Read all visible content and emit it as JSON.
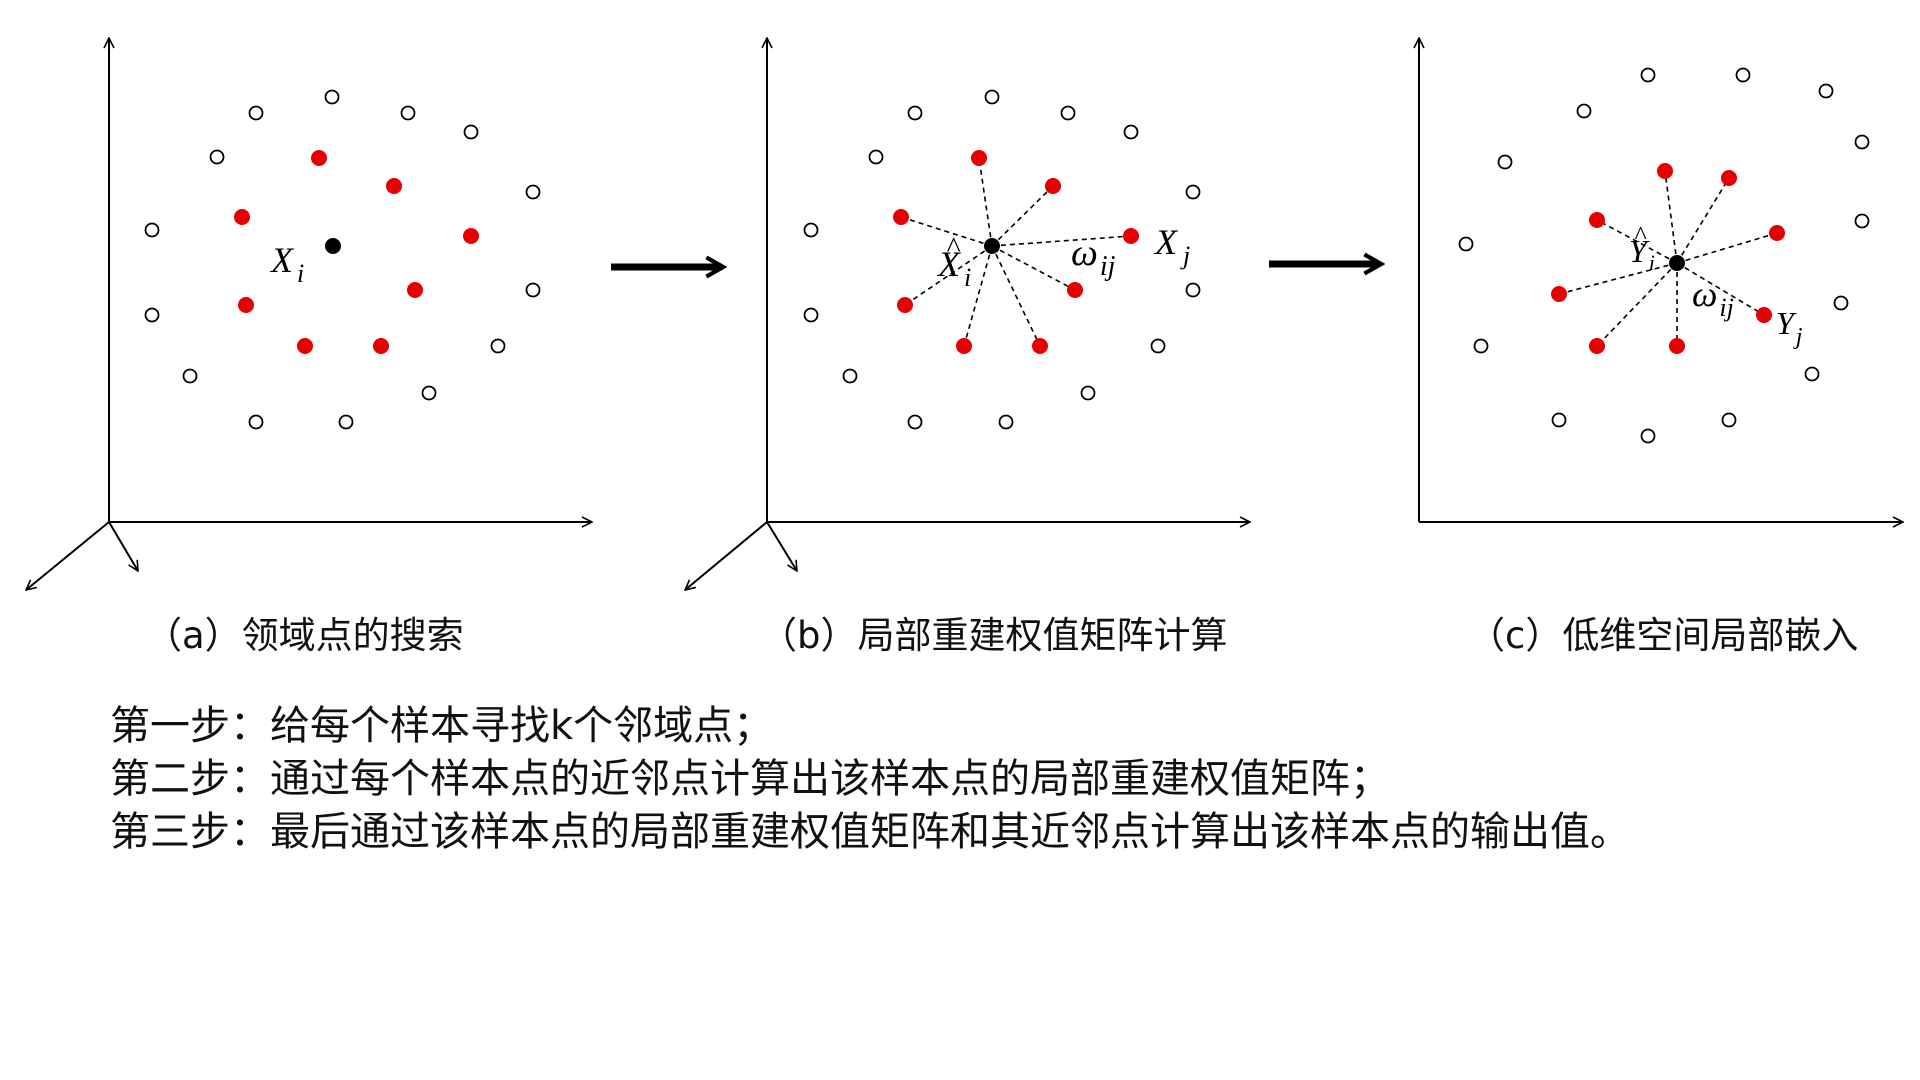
{
  "panels": [
    {
      "id": "a",
      "caption": "（a）领域点的搜索",
      "center_label": {
        "base": "X",
        "sub": "i",
        "hat": false
      },
      "neighbor_label": null,
      "weight_label": null
    },
    {
      "id": "b",
      "caption": "（b）局部重建权值矩阵计算",
      "center_label": {
        "base": "X",
        "sub": "i",
        "hat": true
      },
      "neighbor_label": {
        "base": "X",
        "sub": "j"
      },
      "weight_label": {
        "base": "ω",
        "sub": "ij"
      }
    },
    {
      "id": "c",
      "caption": "（c）低维空间局部嵌入",
      "center_label": {
        "base": "Y",
        "sub": "i",
        "hat": true
      },
      "neighbor_label": {
        "base": "Y",
        "sub": "j"
      },
      "weight_label": {
        "base": "ω",
        "sub": "ij"
      }
    }
  ],
  "steps": [
    "第一步：给每个样本寻找k个邻域点；",
    "第二步：通过每个样本点的近邻点计算出该样本点的局部重建权值矩阵；",
    "第三步：最后通过该样本点的局部重建权值矩阵和其近邻点计算出该样本点的输出值。"
  ],
  "colors": {
    "neighbor_point": "#e60000",
    "center_point": "#000000",
    "other_point_stroke": "#000000",
    "axis": "#000000"
  }
}
